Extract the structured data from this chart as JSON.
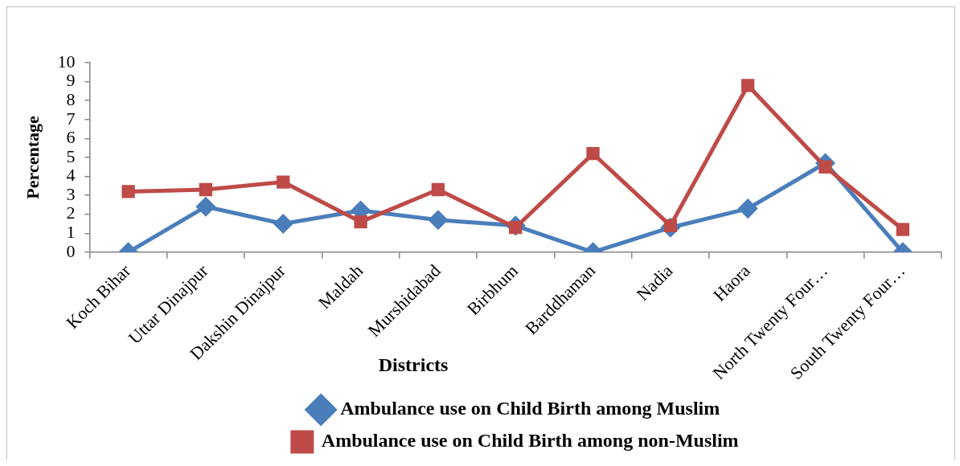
{
  "chart_data": {
    "type": "line",
    "xlabel": "Districts",
    "ylabel": "Percentage",
    "categories": [
      "Koch Bihar",
      "Uttar Dinajpur",
      "Dakshin Dinajpur",
      "Maldah",
      "Murshidabad",
      "Birbhum",
      "Barddhaman",
      "Nadia",
      "Haora",
      "North Twenty Four…",
      "South Twenty Four…"
    ],
    "series": [
      {
        "name": "Ambulance use on Child Birth among Muslim",
        "color": "#4a7ebb",
        "marker": "diamond",
        "values": [
          0,
          2.4,
          1.5,
          2.2,
          1.7,
          1.4,
          0,
          1.3,
          2.3,
          4.7,
          0
        ]
      },
      {
        "name": "Ambulance use on Child Birth among non-Muslim",
        "color": "#be4b48",
        "marker": "square",
        "values": [
          3.2,
          3.3,
          3.7,
          1.6,
          3.3,
          1.3,
          5.2,
          1.4,
          8.8,
          4.5,
          1.2
        ]
      }
    ],
    "ylim": [
      0,
      10
    ],
    "yticks": [
      0,
      1,
      2,
      3,
      4,
      5,
      6,
      7,
      8,
      9,
      10
    ],
    "grid": false,
    "legend": "bottom"
  }
}
